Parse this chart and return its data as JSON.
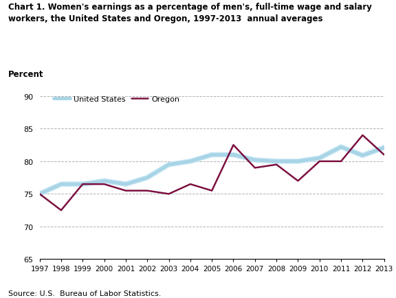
{
  "years": [
    1997,
    1998,
    1999,
    2000,
    2001,
    2002,
    2003,
    2004,
    2005,
    2006,
    2007,
    2008,
    2009,
    2010,
    2011,
    2012,
    2013
  ],
  "us_values": [
    75.0,
    76.5,
    76.5,
    77.0,
    76.5,
    77.5,
    79.5,
    80.0,
    81.0,
    81.0,
    80.2,
    80.0,
    80.0,
    80.5,
    82.2,
    80.9,
    82.1
  ],
  "oregon_values": [
    75.0,
    72.5,
    76.5,
    76.5,
    75.5,
    75.5,
    75.0,
    76.5,
    75.5,
    82.5,
    79.0,
    79.5,
    77.0,
    80.0,
    80.0,
    84.0,
    81.0
  ],
  "us_color_main": "#a8d4e6",
  "us_color_band": "#c8e8f5",
  "oregon_color": "#7b1040",
  "us_label": "United States",
  "oregon_label": "Oregon",
  "title": "Chart 1. Women's earnings as a percentage of men's, full-time wage and salary\nworkers, the United States and Oregon, 1997-2013  annual averages",
  "percent_label": "Percent",
  "ylim": [
    65,
    92
  ],
  "yticks": [
    65,
    70,
    75,
    80,
    85,
    90
  ],
  "source_text": "Source: U.S.  Bureau of Labor Statistics.",
  "background_color": "#ffffff",
  "grid_color": "#b0b0b0",
  "linewidth_us": 3.5,
  "linewidth_oregon": 1.8
}
